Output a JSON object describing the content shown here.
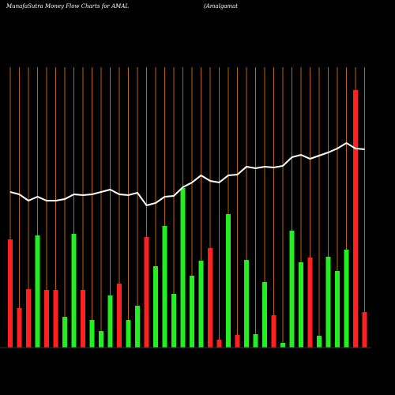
{
  "chart_data": {
    "type": "bar",
    "title": "MunafaSutra  Money Flow  Charts for AMAL",
    "subtitle": "(Amalgamat",
    "categories": [
      null,
      null,
      null,
      null,
      null,
      null,
      null,
      null,
      null,
      null,
      null,
      null,
      null,
      null,
      null,
      null,
      null,
      null,
      null,
      null,
      null,
      null,
      null,
      null,
      null,
      null,
      null,
      null,
      null,
      null,
      null,
      null,
      null,
      null,
      null,
      null,
      null,
      null,
      null,
      null
    ],
    "values": [
      137,
      50,
      74,
      142,
      73,
      73,
      39,
      144,
      73,
      35,
      21,
      66,
      81,
      35,
      53,
      140,
      103,
      154,
      68,
      202,
      91,
      110,
      126,
      10,
      169,
      16,
      111,
      17,
      83,
      41,
      6,
      148,
      108,
      114,
      15,
      115,
      97,
      124,
      326,
      45
    ],
    "colors": [
      "#ff2020",
      "#ff2020",
      "#ff2020",
      "#22ee22",
      "#ff2020",
      "#ff2020",
      "#22ee22",
      "#22ee22",
      "#ff2020",
      "#22ee22",
      "#22ee22",
      "#22ee22",
      "#ff2020",
      "#22ee22",
      "#22ee22",
      "#ff2020",
      "#22ee22",
      "#22ee22",
      "#22ee22",
      "#22ee22",
      "#22ee22",
      "#22ee22",
      "#ff2020",
      "#ff2020",
      "#22ee22",
      "#ff2020",
      "#22ee22",
      "#22ee22",
      "#22ee22",
      "#ff2020",
      "#22ee22",
      "#22ee22",
      "#22ee22",
      "#ff2020",
      "#22ee22",
      "#22ee22",
      "#22ee22",
      "#22ee22",
      "#ff2020",
      "#ff2020"
    ],
    "line": {
      "color": "#ffffff",
      "values": [
        197,
        194,
        186,
        191,
        186,
        186,
        188,
        194,
        193,
        194,
        197,
        200,
        194,
        193,
        196,
        180,
        183,
        191,
        192,
        203,
        209,
        218,
        211,
        209,
        218,
        219,
        229,
        227,
        229,
        228,
        230,
        241,
        244,
        239,
        243,
        247,
        252,
        259,
        252,
        251
      ]
    },
    "ylim": [
      0,
      355
    ],
    "grid": true,
    "grid_color": "#b8650a",
    "background": "#000000"
  }
}
